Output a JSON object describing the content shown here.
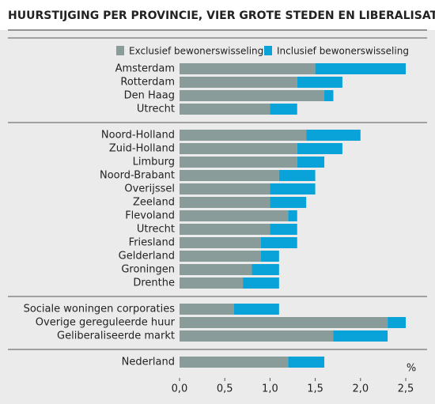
{
  "chart_data": {
    "type": "stacked-barh",
    "title": "HUURSTIJGING PER PROVINCIE, VIER GROTE STEDEN EN LIBERALISATIE",
    "x_label": "%",
    "categories": [
      "Amsterdam",
      "Rotterdam",
      "Den Haag",
      "Utrecht",
      "Noord-Holland",
      "Zuid-Holland",
      "Limburg",
      "Noord-Brabant",
      "Overijssel",
      "Zeeland",
      "Flevoland",
      "Utrecht",
      "Friesland",
      "Gelderland",
      "Groningen",
      "Drenthe",
      "Sociale woningen corporaties",
      "Overige gereguleerde huur",
      "Geliberaliseerde markt",
      "Nederland"
    ],
    "series": [
      {
        "name": "Exclusief bewonerswisseling",
        "color": "#8a9c99",
        "values": [
          1.5,
          1.3,
          1.6,
          1.0,
          1.4,
          1.3,
          1.3,
          1.1,
          1.0,
          1.0,
          1.2,
          1.0,
          0.9,
          0.9,
          0.8,
          0.7,
          0.6,
          2.3,
          1.7,
          1.2
        ]
      },
      {
        "name": "Inclusief bewonerswisseling",
        "color": "#0aa3d9",
        "values": [
          1.0,
          0.5,
          0.1,
          0.3,
          0.6,
          0.5,
          0.3,
          0.4,
          0.5,
          0.4,
          0.1,
          0.3,
          0.4,
          0.2,
          0.3,
          0.4,
          0.5,
          0.2,
          0.6,
          0.4
        ]
      }
    ],
    "xlim": [
      0,
      2.5
    ],
    "xticks": [
      {
        "value": 0,
        "label": "0,0"
      },
      {
        "value": 0.5,
        "label": "0,5"
      },
      {
        "value": 1,
        "label": "1,0"
      },
      {
        "value": 1.5,
        "label": "1,5"
      },
      {
        "value": 2,
        "label": "2,0"
      },
      {
        "value": 2.5,
        "label": "2,5"
      }
    ]
  }
}
